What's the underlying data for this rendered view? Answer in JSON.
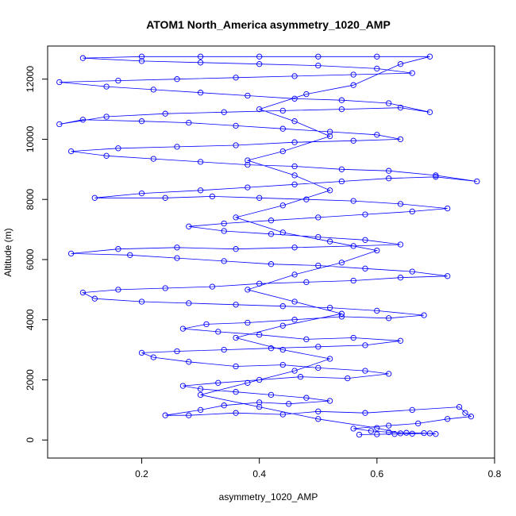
{
  "chart_data": {
    "type": "scatter",
    "title": "ATOM1 North_America asymmetry_1020_AMP",
    "xlabel": "asymmetry_1020_AMP",
    "ylabel": "Altitude (m)",
    "xlim": [
      0.04,
      0.8
    ],
    "ylim": [
      -600,
      13100
    ],
    "x_ticks": [
      0.2,
      0.4,
      0.6,
      0.8
    ],
    "x_tick_labels": [
      "0.2",
      "0.4",
      "0.6",
      "0.8"
    ],
    "y_ticks": [
      0,
      2000,
      4000,
      6000,
      8000,
      10000,
      12000
    ],
    "y_tick_labels": [
      "0",
      "2000",
      "4000",
      "6000",
      "8000",
      "10000",
      "12000"
    ],
    "grid": false,
    "legend": "none",
    "style": "points connected by lines",
    "series_color": "#0000ff",
    "series": [
      {
        "points": [
          [
            0.57,
            180
          ],
          [
            0.6,
            190
          ],
          [
            0.63,
            200
          ],
          [
            0.66,
            210
          ],
          [
            0.69,
            220
          ],
          [
            0.7,
            200
          ],
          [
            0.68,
            230
          ],
          [
            0.65,
            240
          ],
          [
            0.62,
            260
          ],
          [
            0.59,
            300
          ],
          [
            0.56,
            380
          ],
          [
            0.62,
            480
          ],
          [
            0.67,
            550
          ],
          [
            0.72,
            700
          ],
          [
            0.76,
            780
          ],
          [
            0.75,
            900
          ],
          [
            0.74,
            1100
          ],
          [
            0.66,
            1000
          ],
          [
            0.58,
            900
          ],
          [
            0.5,
            950
          ],
          [
            0.44,
            850
          ],
          [
            0.36,
            900
          ],
          [
            0.28,
            820
          ],
          [
            0.24,
            820
          ],
          [
            0.3,
            1000
          ],
          [
            0.34,
            1150
          ],
          [
            0.4,
            1250
          ],
          [
            0.45,
            1200
          ],
          [
            0.52,
            1300
          ],
          [
            0.48,
            1400
          ],
          [
            0.42,
            1500
          ],
          [
            0.36,
            1600
          ],
          [
            0.3,
            1700
          ],
          [
            0.27,
            1800
          ],
          [
            0.33,
            1900
          ],
          [
            0.4,
            2000
          ],
          [
            0.47,
            2100
          ],
          [
            0.55,
            2050
          ],
          [
            0.62,
            2200
          ],
          [
            0.58,
            2300
          ],
          [
            0.5,
            2400
          ],
          [
            0.44,
            2500
          ],
          [
            0.36,
            2450
          ],
          [
            0.28,
            2600
          ],
          [
            0.22,
            2750
          ],
          [
            0.2,
            2900
          ],
          [
            0.26,
            2950
          ],
          [
            0.34,
            3000
          ],
          [
            0.42,
            3050
          ],
          [
            0.5,
            3100
          ],
          [
            0.58,
            3150
          ],
          [
            0.64,
            3300
          ],
          [
            0.56,
            3400
          ],
          [
            0.48,
            3350
          ],
          [
            0.4,
            3500
          ],
          [
            0.33,
            3600
          ],
          [
            0.27,
            3700
          ],
          [
            0.31,
            3850
          ],
          [
            0.38,
            3900
          ],
          [
            0.46,
            4000
          ],
          [
            0.54,
            4100
          ],
          [
            0.62,
            4050
          ],
          [
            0.68,
            4150
          ],
          [
            0.6,
            4300
          ],
          [
            0.52,
            4400
          ],
          [
            0.44,
            4450
          ],
          [
            0.36,
            4500
          ],
          [
            0.28,
            4550
          ],
          [
            0.2,
            4600
          ],
          [
            0.12,
            4700
          ],
          [
            0.1,
            4900
          ],
          [
            0.16,
            5000
          ],
          [
            0.24,
            5050
          ],
          [
            0.32,
            5100
          ],
          [
            0.4,
            5200
          ],
          [
            0.48,
            5250
          ],
          [
            0.56,
            5300
          ],
          [
            0.64,
            5400
          ],
          [
            0.72,
            5450
          ],
          [
            0.66,
            5600
          ],
          [
            0.58,
            5700
          ],
          [
            0.5,
            5800
          ],
          [
            0.42,
            5850
          ],
          [
            0.34,
            5950
          ],
          [
            0.26,
            6050
          ],
          [
            0.18,
            6150
          ],
          [
            0.08,
            6200
          ],
          [
            0.16,
            6350
          ],
          [
            0.26,
            6400
          ],
          [
            0.36,
            6350
          ],
          [
            0.46,
            6400
          ],
          [
            0.56,
            6450
          ],
          [
            0.64,
            6500
          ],
          [
            0.58,
            6650
          ],
          [
            0.5,
            6750
          ],
          [
            0.42,
            6850
          ],
          [
            0.34,
            6950
          ],
          [
            0.28,
            7100
          ],
          [
            0.34,
            7200
          ],
          [
            0.42,
            7300
          ],
          [
            0.5,
            7400
          ],
          [
            0.58,
            7500
          ],
          [
            0.66,
            7600
          ],
          [
            0.72,
            7700
          ],
          [
            0.64,
            7850
          ],
          [
            0.56,
            7950
          ],
          [
            0.48,
            8000
          ],
          [
            0.4,
            8050
          ],
          [
            0.32,
            8100
          ],
          [
            0.24,
            8050
          ],
          [
            0.12,
            8050
          ],
          [
            0.2,
            8200
          ],
          [
            0.3,
            8300
          ],
          [
            0.38,
            8400
          ],
          [
            0.46,
            8500
          ],
          [
            0.54,
            8600
          ],
          [
            0.62,
            8700
          ],
          [
            0.7,
            8750
          ],
          [
            0.77,
            8600
          ],
          [
            0.7,
            8800
          ],
          [
            0.62,
            8950
          ],
          [
            0.54,
            9000
          ],
          [
            0.46,
            9100
          ],
          [
            0.38,
            9150
          ],
          [
            0.3,
            9250
          ],
          [
            0.22,
            9350
          ],
          [
            0.14,
            9450
          ],
          [
            0.08,
            9600
          ],
          [
            0.16,
            9700
          ],
          [
            0.26,
            9750
          ],
          [
            0.36,
            9800
          ],
          [
            0.46,
            9900
          ],
          [
            0.56,
            9950
          ],
          [
            0.64,
            10000
          ],
          [
            0.6,
            10150
          ],
          [
            0.52,
            10250
          ],
          [
            0.44,
            10350
          ],
          [
            0.36,
            10450
          ],
          [
            0.28,
            10550
          ],
          [
            0.2,
            10600
          ],
          [
            0.1,
            10650
          ],
          [
            0.06,
            10500
          ],
          [
            0.14,
            10750
          ],
          [
            0.24,
            10850
          ],
          [
            0.34,
            10900
          ],
          [
            0.44,
            10950
          ],
          [
            0.54,
            11000
          ],
          [
            0.64,
            11050
          ],
          [
            0.69,
            10900
          ],
          [
            0.62,
            11200
          ],
          [
            0.54,
            11300
          ],
          [
            0.46,
            11350
          ],
          [
            0.38,
            11450
          ],
          [
            0.3,
            11550
          ],
          [
            0.22,
            11650
          ],
          [
            0.14,
            11750
          ],
          [
            0.06,
            11900
          ],
          [
            0.16,
            11950
          ],
          [
            0.26,
            12000
          ],
          [
            0.36,
            12050
          ],
          [
            0.46,
            12100
          ],
          [
            0.56,
            12150
          ],
          [
            0.66,
            12200
          ],
          [
            0.6,
            12350
          ],
          [
            0.5,
            12450
          ],
          [
            0.4,
            12500
          ],
          [
            0.3,
            12550
          ],
          [
            0.2,
            12600
          ],
          [
            0.1,
            12700
          ],
          [
            0.2,
            12750
          ],
          [
            0.3,
            12750
          ],
          [
            0.4,
            12750
          ],
          [
            0.5,
            12750
          ],
          [
            0.6,
            12750
          ],
          [
            0.69,
            12750
          ],
          [
            0.64,
            12500
          ],
          [
            0.56,
            11800
          ],
          [
            0.48,
            11500
          ],
          [
            0.4,
            11000
          ],
          [
            0.46,
            10600
          ],
          [
            0.52,
            10100
          ],
          [
            0.44,
            9600
          ],
          [
            0.38,
            9300
          ],
          [
            0.46,
            8800
          ],
          [
            0.52,
            8300
          ],
          [
            0.44,
            7800
          ],
          [
            0.36,
            7400
          ],
          [
            0.44,
            6900
          ],
          [
            0.52,
            6600
          ],
          [
            0.6,
            6300
          ],
          [
            0.54,
            5900
          ],
          [
            0.46,
            5500
          ],
          [
            0.38,
            5000
          ],
          [
            0.46,
            4600
          ],
          [
            0.54,
            4200
          ],
          [
            0.44,
            3800
          ],
          [
            0.36,
            3400
          ],
          [
            0.44,
            3000
          ],
          [
            0.52,
            2700
          ],
          [
            0.46,
            2300
          ],
          [
            0.38,
            1900
          ],
          [
            0.3,
            1500
          ],
          [
            0.4,
            1100
          ],
          [
            0.5,
            700
          ],
          [
            0.6,
            400
          ],
          [
            0.64,
            220
          ]
        ]
      }
    ]
  }
}
